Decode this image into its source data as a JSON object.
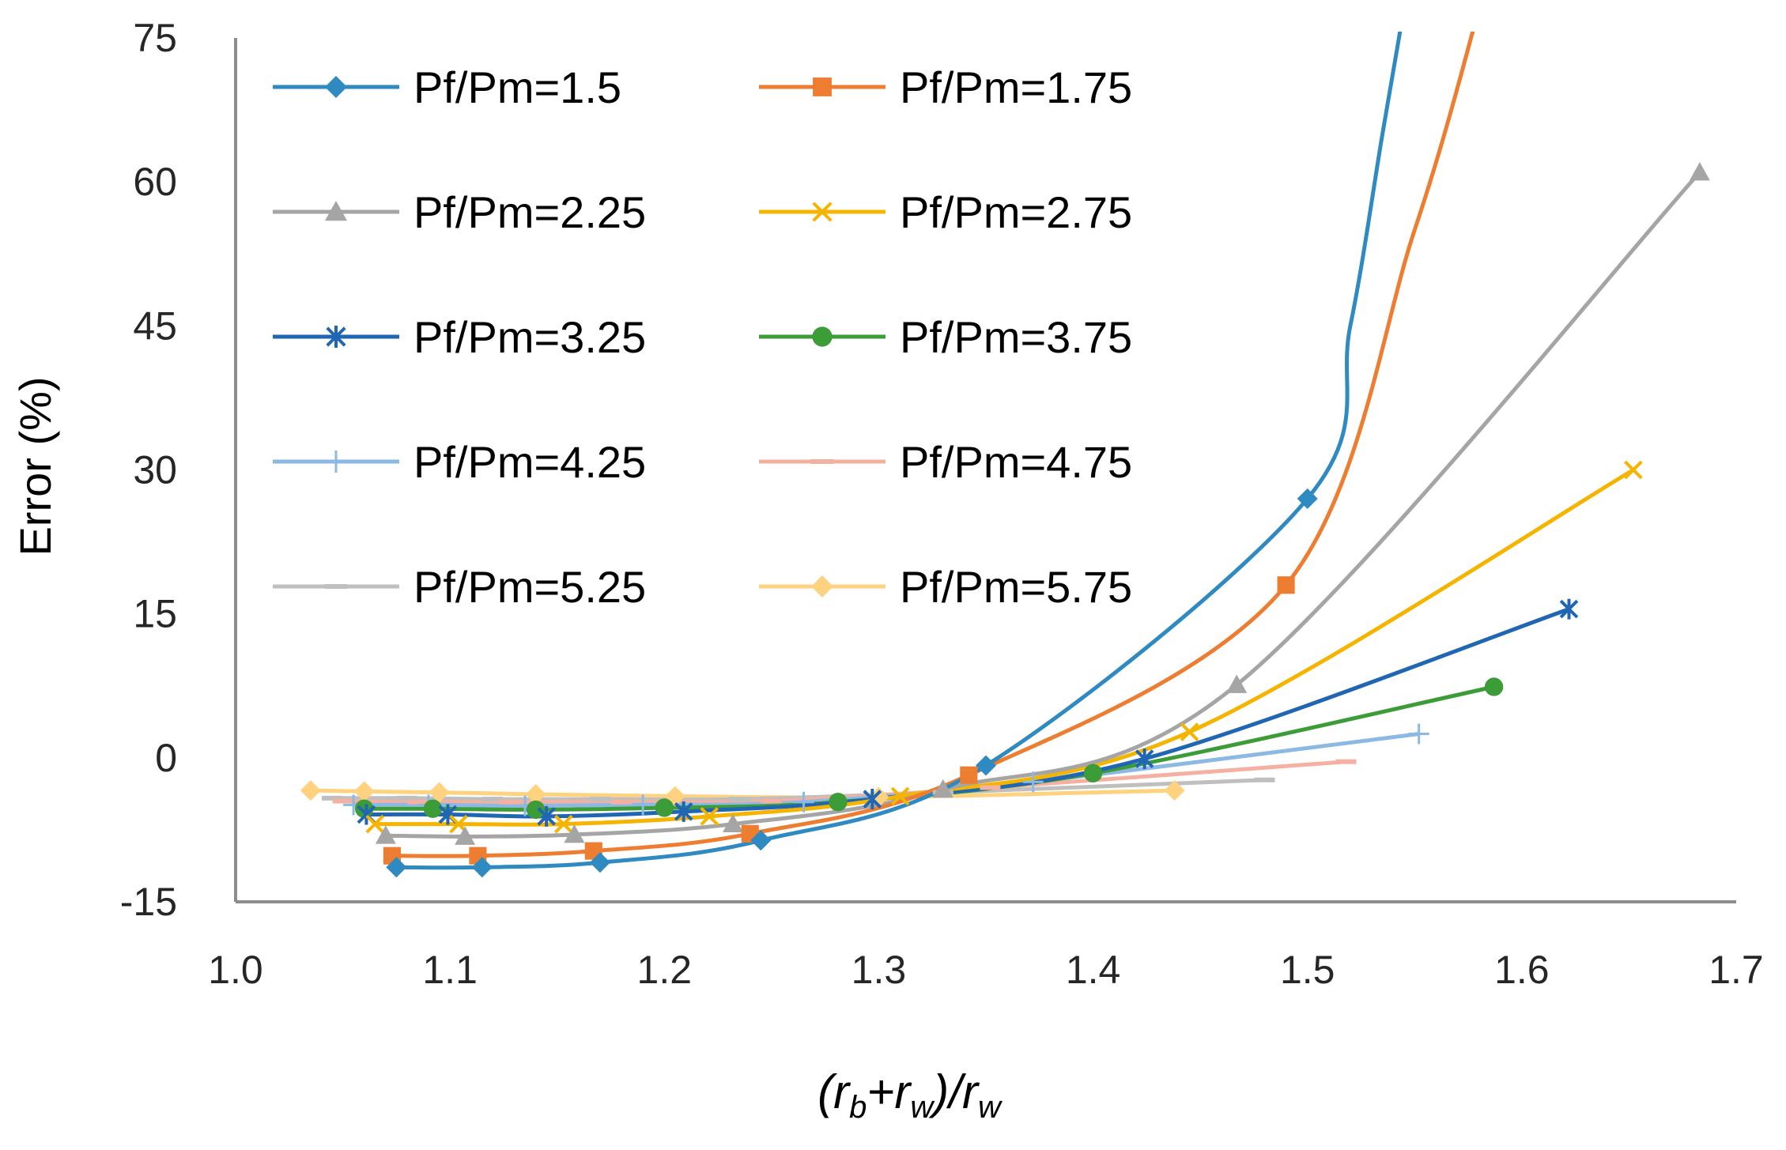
{
  "chart_data": {
    "type": "line",
    "title": "",
    "xlabel": "(r_b+r_w)/r_w",
    "xlabel_parts": {
      "open": "(r",
      "sub_b": "b",
      "plus": "+r",
      "sub_w1": "w",
      "close": ")/r",
      "sub_w2": "w"
    },
    "ylabel": "Error (%)",
    "xlim": [
      1.0,
      1.7
    ],
    "ylim": [
      -15,
      75
    ],
    "xticks": [
      1.0,
      1.1,
      1.2,
      1.3,
      1.4,
      1.5,
      1.6,
      1.7
    ],
    "xtick_labels": [
      "1.0",
      "1.1",
      "1.2",
      "1.3",
      "1.4",
      "1.5",
      "1.6",
      "1.7"
    ],
    "yticks": [
      -15,
      0,
      15,
      30,
      45,
      60,
      75
    ],
    "ytick_labels": [
      "-15",
      "0",
      "15",
      "30",
      "45",
      "60",
      "75"
    ],
    "grid": false,
    "legend_position": "top-left",
    "series": [
      {
        "name": "Pf/Pm=1.5",
        "color": "#2E8AC0",
        "marker": "diamond",
        "x": [
          1.075,
          1.115,
          1.17,
          1.245,
          1.35,
          1.5
        ],
        "y": [
          -11.4,
          -11.4,
          -10.9,
          -8.6,
          -0.8,
          27
        ],
        "tail": [
          [
            1.52,
            45
          ],
          [
            1.535,
            65
          ],
          [
            1.545,
            78
          ]
        ]
      },
      {
        "name": "Pf/Pm=1.75",
        "color": "#ED7D31",
        "marker": "square",
        "x": [
          1.073,
          1.113,
          1.167,
          1.24,
          1.342,
          1.49
        ],
        "y": [
          -10.2,
          -10.2,
          -9.7,
          -7.9,
          -1.8,
          18
        ],
        "tail": [
          [
            1.55,
            55
          ],
          [
            1.58,
            78
          ]
        ]
      },
      {
        "name": "Pf/Pm=2.25",
        "color": "#A5A5A5",
        "marker": "triangle",
        "x": [
          1.07,
          1.107,
          1.158,
          1.232,
          1.33,
          1.467,
          1.683
        ],
        "y": [
          -8.1,
          -8.2,
          -8.0,
          -6.9,
          -3.3,
          7.6,
          61
        ]
      },
      {
        "name": "Pf/Pm=2.75",
        "color": "#F5B400",
        "marker": "x",
        "x": [
          1.065,
          1.104,
          1.153,
          1.221,
          1.31,
          1.445,
          1.652
        ],
        "y": [
          -6.9,
          -6.9,
          -6.9,
          -6.1,
          -4.0,
          2.7,
          30
        ]
      },
      {
        "name": "Pf/Pm=3.25",
        "color": "#2066B3",
        "marker": "asterisk",
        "x": [
          1.061,
          1.099,
          1.145,
          1.209,
          1.297,
          1.424,
          1.622
        ],
        "y": [
          -5.9,
          -5.9,
          -6.1,
          -5.6,
          -4.3,
          -0.1,
          15.5
        ]
      },
      {
        "name": "Pf/Pm=3.75",
        "color": "#3C9C38",
        "marker": "circle",
        "x": [
          1.06,
          1.092,
          1.14,
          1.2,
          1.281,
          1.4,
          1.587
        ],
        "y": [
          -5.3,
          -5.3,
          -5.4,
          -5.2,
          -4.6,
          -1.6,
          7.4
        ]
      },
      {
        "name": "Pf/Pm=4.25",
        "color": "#8CB9E3",
        "marker": "plus",
        "x": [
          1.055,
          1.09,
          1.135,
          1.19,
          1.265,
          1.372,
          1.552
        ],
        "y": [
          -4.9,
          -4.9,
          -5.0,
          -4.9,
          -4.6,
          -2.5,
          2.5
        ]
      },
      {
        "name": "Pf/Pm=4.75",
        "color": "#F4B0A0",
        "marker": "dash",
        "x": [
          1.05,
          1.085,
          1.128,
          1.18,
          1.25,
          1.352,
          1.518
        ],
        "y": [
          -4.5,
          -4.6,
          -4.6,
          -4.6,
          -4.5,
          -3.1,
          -0.4
        ]
      },
      {
        "name": "Pf/Pm=5.25",
        "color": "#BFBFBF",
        "marker": "dash",
        "x": [
          1.045,
          1.08,
          1.12,
          1.17,
          1.235,
          1.33,
          1.48
        ],
        "y": [
          -4.2,
          -4.2,
          -4.3,
          -4.3,
          -4.3,
          -3.6,
          -2.3
        ]
      },
      {
        "name": "Pf/Pm=5.75",
        "color": "#FFD280",
        "marker": "diamond",
        "x": [
          1.035,
          1.06,
          1.095,
          1.14,
          1.205,
          1.3,
          1.438
        ],
        "y": [
          -3.4,
          -3.5,
          -3.6,
          -3.8,
          -4.0,
          -4.1,
          -3.4
        ]
      }
    ]
  }
}
